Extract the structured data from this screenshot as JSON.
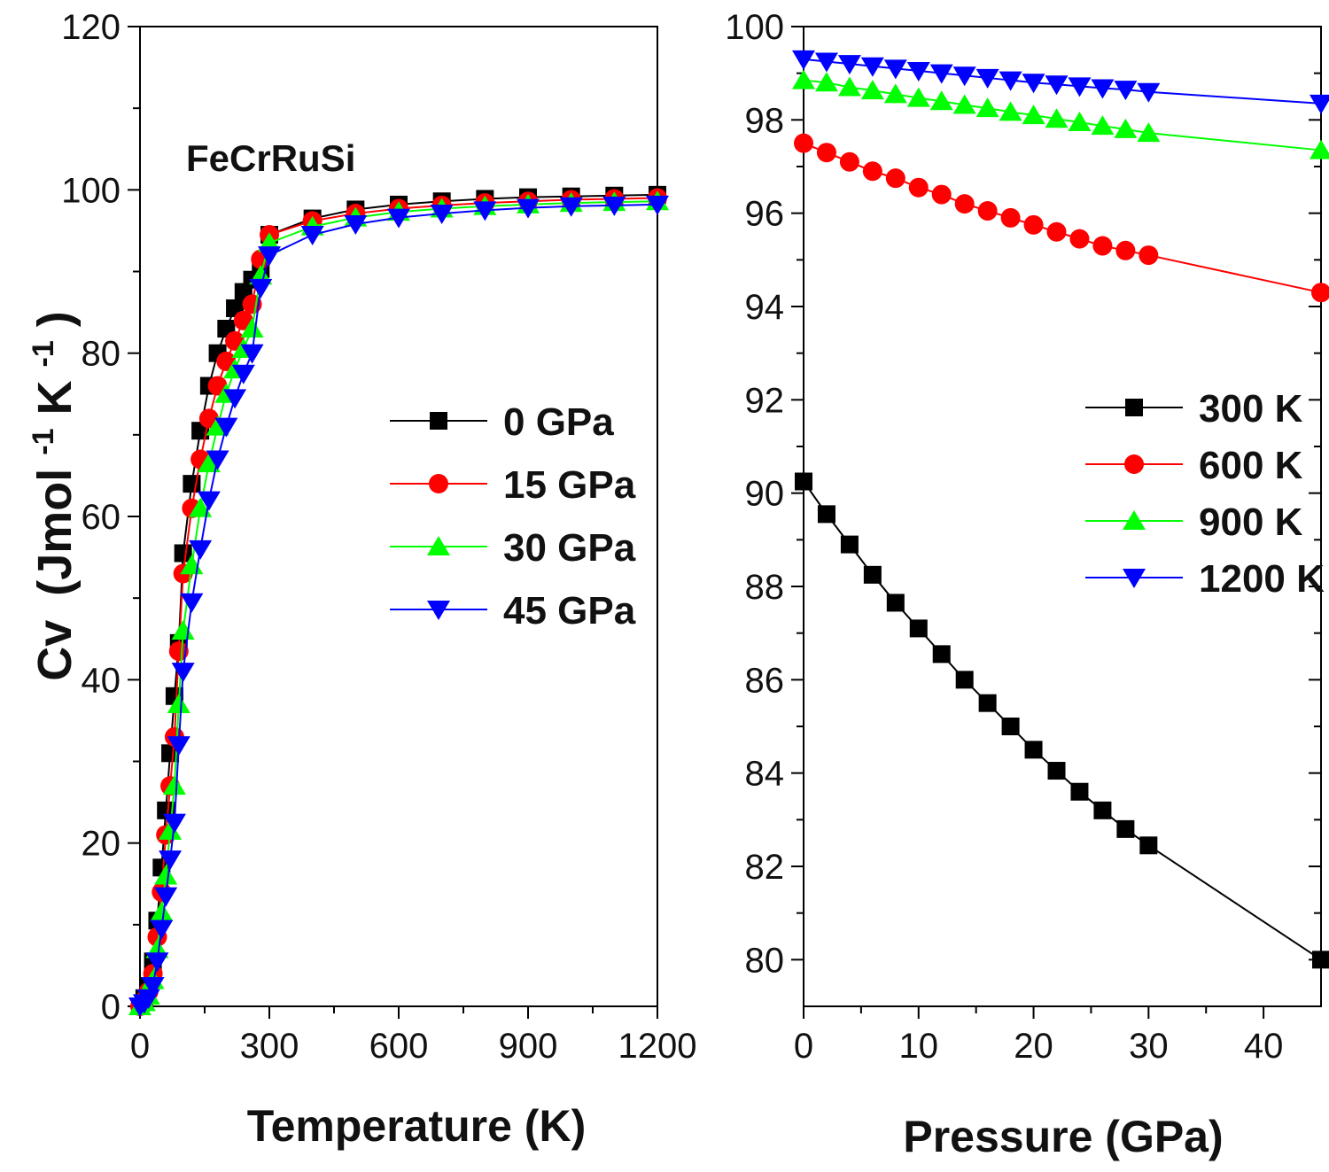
{
  "chart_data": [
    {
      "type": "line",
      "panel": "left",
      "title": "",
      "annotation": "FeCrRuSi",
      "xlabel": "Temperature (K)",
      "ylabel_main": "Cv",
      "ylabel_rest": "(Jmol",
      "ylabel_exp1": "-1",
      "ylabel_mid": "K",
      "ylabel_exp2": "-1",
      "ylabel_close": ")",
      "xlim": [
        0,
        1200
      ],
      "ylim": [
        0,
        120
      ],
      "xticks": [
        0,
        300,
        600,
        900,
        1200
      ],
      "yticks": [
        0,
        20,
        40,
        60,
        80,
        100,
        120
      ],
      "x": [
        0,
        10,
        20,
        30,
        40,
        50,
        60,
        70,
        80,
        90,
        100,
        120,
        140,
        160,
        180,
        200,
        220,
        240,
        260,
        280,
        300,
        400,
        500,
        600,
        700,
        800,
        900,
        1000,
        1100,
        1200
      ],
      "series": [
        {
          "name": "0 GPa",
          "color": "#000000",
          "marker": "square",
          "values": [
            0,
            1.0,
            2.5,
            5.5,
            10.5,
            17,
            24,
            31,
            38,
            44.5,
            55.5,
            64,
            70.5,
            76,
            80,
            83,
            85.5,
            87.5,
            89,
            90.3,
            94.5,
            96.5,
            97.6,
            98.2,
            98.6,
            98.9,
            99.1,
            99.2,
            99.3,
            99.4
          ]
        },
        {
          "name": "15 GPa",
          "color": "#ff0000",
          "marker": "circle",
          "values": [
            0,
            0.7,
            1.8,
            4.0,
            8.5,
            14,
            21,
            27,
            33,
            43.5,
            53,
            61,
            67,
            72,
            76,
            79,
            81.5,
            84,
            86,
            91.5,
            94.5,
            96.2,
            97.1,
            97.7,
            98.1,
            98.4,
            98.6,
            98.8,
            98.9,
            99.0
          ]
        },
        {
          "name": "30 GPa",
          "color": "#00ff00",
          "marker": "triangle-up",
          "values": [
            0,
            0.5,
            1.3,
            3.2,
            7,
            11.5,
            16,
            21.5,
            27,
            37,
            46,
            54,
            61,
            66.5,
            71,
            75,
            78,
            80.5,
            83,
            89.5,
            93.5,
            95.5,
            96.6,
            97.3,
            97.7,
            98.0,
            98.2,
            98.4,
            98.5,
            98.6
          ]
        },
        {
          "name": "45 GPa",
          "color": "#0000ff",
          "marker": "triangle-down",
          "values": [
            0,
            0.4,
            1.0,
            2.5,
            5.5,
            9.5,
            13.5,
            18,
            22.5,
            32,
            41,
            49.5,
            56,
            62,
            67,
            71,
            74.5,
            77.5,
            80,
            88,
            92,
            94.5,
            95.8,
            96.6,
            97.1,
            97.5,
            97.8,
            98.0,
            98.1,
            98.2
          ]
        }
      ],
      "legend_position": "center-right"
    },
    {
      "type": "line",
      "panel": "right",
      "title": "",
      "xlabel": "Pressure (GPa)",
      "ylabel": "",
      "xlim": [
        0,
        45
      ],
      "ylim": [
        79,
        100
      ],
      "xticks": [
        0,
        10,
        20,
        30,
        40
      ],
      "yticks": [
        80,
        82,
        84,
        86,
        88,
        90,
        92,
        94,
        96,
        98,
        100
      ],
      "x": [
        0,
        2,
        4,
        6,
        8,
        10,
        12,
        14,
        16,
        18,
        20,
        22,
        24,
        26,
        28,
        30,
        45
      ],
      "series": [
        {
          "name": "300 K",
          "color": "#000000",
          "marker": "square",
          "values": [
            90.25,
            89.55,
            88.9,
            88.25,
            87.65,
            87.1,
            86.55,
            86.0,
            85.5,
            85.0,
            84.5,
            84.05,
            83.6,
            83.2,
            82.8,
            82.45,
            80.0
          ]
        },
        {
          "name": "600 K",
          "color": "#ff0000",
          "marker": "circle",
          "values": [
            97.5,
            97.3,
            97.1,
            96.9,
            96.75,
            96.55,
            96.4,
            96.2,
            96.05,
            95.9,
            95.75,
            95.6,
            95.45,
            95.3,
            95.2,
            95.1,
            94.3
          ]
        },
        {
          "name": "900 K",
          "color": "#00ff00",
          "marker": "triangle-up",
          "values": [
            98.85,
            98.8,
            98.7,
            98.63,
            98.55,
            98.47,
            98.4,
            98.32,
            98.25,
            98.17,
            98.1,
            98.02,
            97.95,
            97.87,
            97.8,
            97.72,
            97.35
          ]
        },
        {
          "name": "1200 K",
          "color": "#0000ff",
          "marker": "triangle-down",
          "values": [
            99.3,
            99.25,
            99.2,
            99.15,
            99.1,
            99.05,
            99.0,
            98.95,
            98.9,
            98.85,
            98.8,
            98.76,
            98.72,
            98.68,
            98.65,
            98.6,
            98.35
          ]
        }
      ],
      "legend_position": "center-right"
    }
  ]
}
